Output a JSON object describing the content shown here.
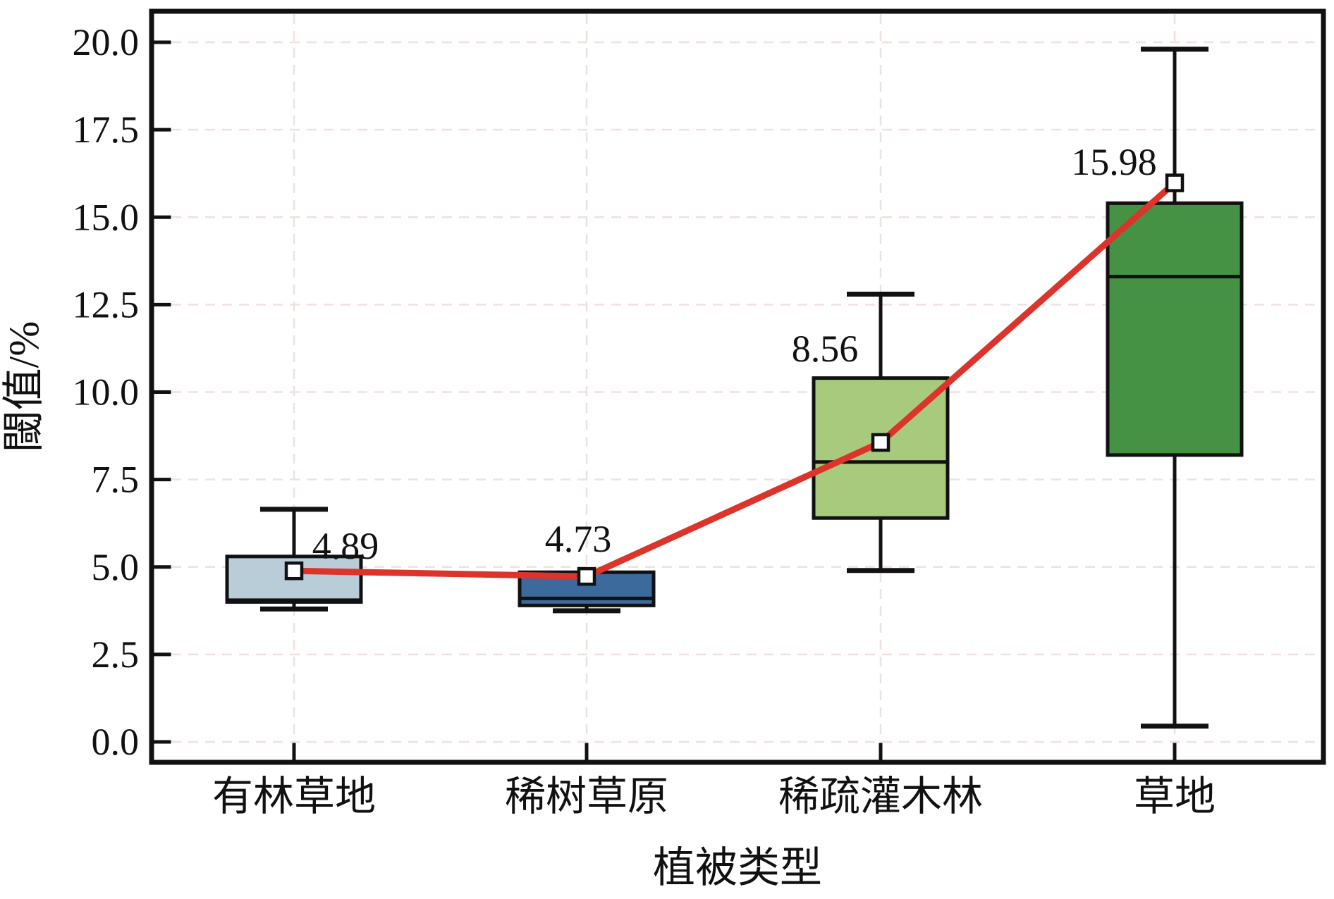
{
  "figure": {
    "background": "#ffffff",
    "border_color": "#111111"
  },
  "chart_data": {
    "type": "boxplot",
    "subtype": "boxplot with mean points connected by line",
    "xlabel": "植被类型",
    "ylabel": "閾值/%",
    "categories": [
      "有林草地",
      "稀树草原",
      "稀疏灌木林",
      "草地"
    ],
    "ylim": [
      0,
      20
    ],
    "ytick_labels": [
      "0.0",
      "2.5",
      "5.0",
      "7.5",
      "10.0",
      "12.5",
      "15.0",
      "17.5",
      "20.0"
    ],
    "ytick_values": [
      0,
      2.5,
      5,
      7.5,
      10,
      12.5,
      15,
      17.5,
      20
    ],
    "grid": "faint dashed horizontal gridlines at each ytick and vertical gridlines at each category",
    "legend_position": "none",
    "boxes": [
      {
        "category": "有林草地",
        "whisker_low": 3.8,
        "q1": 4.0,
        "median": 4.05,
        "q3": 5.3,
        "whisker_high": 6.65,
        "mean": 4.89,
        "mean_label": "4.89",
        "fill": "#b9cdd9"
      },
      {
        "category": "稀树草原",
        "whisker_low": 3.75,
        "q1": 3.9,
        "median": 4.1,
        "q3": 4.85,
        "whisker_high": 4.85,
        "mean": 4.73,
        "mean_label": "4.73",
        "fill": "#3c6a9d"
      },
      {
        "category": "稀疏灌木林",
        "whisker_low": 4.9,
        "q1": 6.4,
        "median": 8.0,
        "q3": 10.4,
        "whisker_high": 12.8,
        "mean": 8.56,
        "mean_label": "8.56",
        "fill": "#a8ca7d"
      },
      {
        "category": "草地",
        "whisker_low": 0.45,
        "q1": 8.2,
        "median": 13.3,
        "q3": 15.4,
        "whisker_high": 19.8,
        "mean": 15.98,
        "mean_label": "15.98",
        "fill": "#459245"
      }
    ],
    "mean_line": {
      "series_name": "mean",
      "values": [
        4.89,
        4.73,
        8.56,
        15.98
      ],
      "color": "#dc332a",
      "marker": "white-square-black-edge"
    },
    "colors": {
      "box_edge": "#111111",
      "median_line": "#111111",
      "whisker": "#111111",
      "mean_line": "#dc332a",
      "mean_marker_fill": "#ffffff",
      "grid_horizontal": "#f0e0de",
      "grid_vertical": "#eae2de"
    }
  }
}
